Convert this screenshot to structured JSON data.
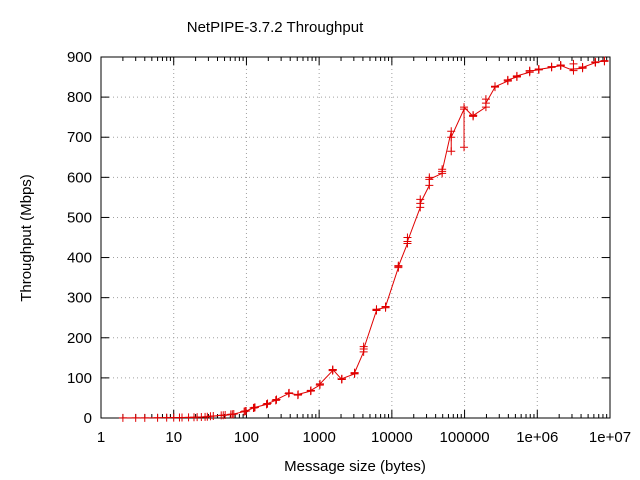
{
  "chart_data": {
    "type": "line",
    "title": "NetPIPE-3.7.2 Throughput",
    "xlabel": "Message size (bytes)",
    "ylabel": "Throughput (Mbps)",
    "xscale": "log",
    "xlim": [
      1,
      10000000
    ],
    "ylim": [
      0,
      900
    ],
    "grid": true,
    "legend": "none",
    "x_tick_labels": [
      "1",
      "10",
      "100",
      "1000",
      "10000",
      "100000",
      "1e+06",
      "1e+07"
    ],
    "y_tick_labels": [
      "0",
      "100",
      "200",
      "300",
      "400",
      "500",
      "600",
      "700",
      "800",
      "900"
    ],
    "series": [
      {
        "color": "#e00000",
        "marker": "plus",
        "x": [
          2,
          3,
          4,
          6,
          8,
          10,
          12,
          13,
          16,
          19,
          21,
          24,
          27,
          29,
          32,
          35,
          45,
          48,
          51,
          61,
          64,
          67,
          93,
          96,
          99,
          125,
          128,
          131,
          189,
          192,
          195,
          253,
          256,
          259,
          381,
          384,
          387,
          509,
          512,
          515,
          765,
          768,
          771,
          1021,
          1024,
          1027,
          1533,
          1536,
          1539,
          2045,
          2048,
          2051,
          3069,
          3072,
          3075,
          4093,
          4096,
          4099,
          6141,
          6144,
          6147,
          8189,
          8192,
          8195,
          12285,
          12288,
          12291,
          16381,
          16384,
          16387,
          24573,
          24576,
          24579,
          32765,
          32768,
          32771,
          49149,
          49152,
          49155,
          65533,
          65536,
          65539,
          98301,
          98304,
          98307,
          131069,
          131072,
          131075,
          196605,
          196608,
          196611,
          262141,
          262144,
          262147,
          393213,
          393216,
          393219,
          524285,
          524288,
          524291,
          786429,
          786432,
          786435,
          1048573,
          1048576,
          1048579,
          1572861,
          1572864,
          1572867,
          2097149,
          2097152,
          2097155,
          3145725,
          3145728,
          3145731,
          4194301,
          4194304,
          4194307,
          6291453,
          6291456,
          6291459,
          8388605,
          8388608,
          8388611
        ],
        "y": [
          0.2,
          0.3,
          0.4,
          0.6,
          0.8,
          1.0,
          1.2,
          1.3,
          1.6,
          1.9,
          2.2,
          2.5,
          2.8,
          3.0,
          4.5,
          5.0,
          6.5,
          7.0,
          7.5,
          9.0,
          9.5,
          10.0,
          16,
          17,
          17.5,
          25,
          26,
          26.5,
          34,
          35,
          36,
          44,
          45,
          46,
          61,
          62,
          62.5,
          57,
          58,
          59,
          67,
          68,
          69,
          82,
          84,
          85,
          118,
          120,
          121,
          96,
          97,
          98,
          110,
          112,
          113,
          165,
          178,
          172,
          268,
          270,
          271,
          275,
          277,
          278,
          375,
          380,
          378,
          435,
          450,
          440,
          525,
          545,
          535,
          580,
          600,
          595,
          610,
          620,
          615,
          715,
          665,
          700,
          770,
          675,
          775,
          752,
          755,
          754,
          775,
          795,
          785,
          825,
          827,
          826,
          840,
          842,
          843,
          850,
          852,
          853,
          862,
          866,
          865,
          868,
          870,
          869,
          874,
          876,
          875,
          878,
          880,
          879,
          866,
          883,
          870,
          872,
          875,
          874,
          886,
          888,
          887,
          890,
          891,
          889
        ]
      }
    ]
  }
}
